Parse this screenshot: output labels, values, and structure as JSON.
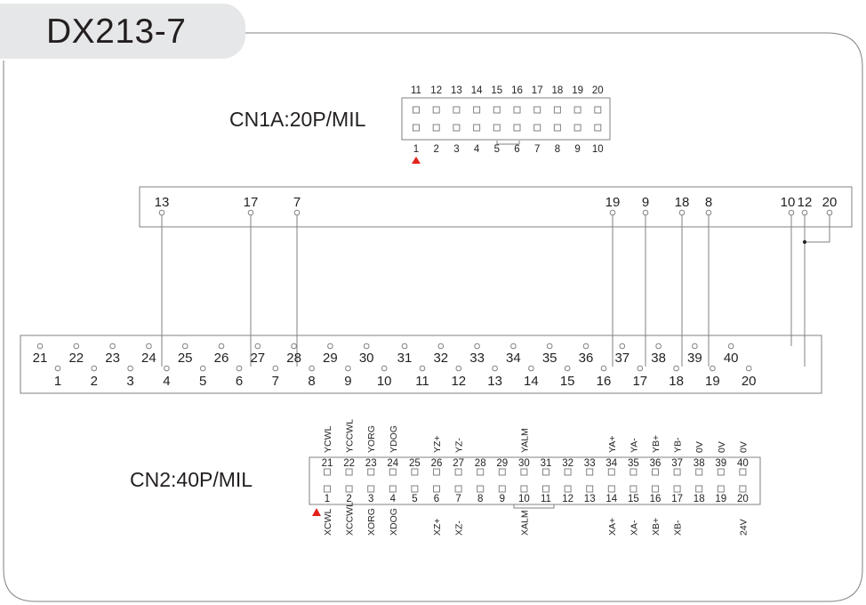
{
  "title": "DX213-7",
  "cn1a": {
    "label": "CN1A:20P/MIL",
    "top_pins": [
      "11",
      "12",
      "13",
      "14",
      "15",
      "16",
      "17",
      "18",
      "19",
      "20"
    ],
    "bottom_pins": [
      "1",
      "2",
      "3",
      "4",
      "5",
      "6",
      "7",
      "8",
      "9",
      "10"
    ]
  },
  "mid_strip": {
    "pins": [
      "13",
      "17",
      "7",
      "19",
      "9",
      "18",
      "8",
      "10",
      "12",
      "20"
    ]
  },
  "terminal": {
    "top_row": [
      "21",
      "22",
      "23",
      "24",
      "25",
      "26",
      "27",
      "28",
      "29",
      "30",
      "31",
      "32",
      "33",
      "34",
      "35",
      "36",
      "37",
      "38",
      "39",
      "40"
    ],
    "bottom_row": [
      "1",
      "2",
      "3",
      "4",
      "5",
      "6",
      "7",
      "8",
      "9",
      "10",
      "11",
      "12",
      "13",
      "14",
      "15",
      "16",
      "17",
      "18",
      "19",
      "20"
    ]
  },
  "cn2": {
    "label": "CN2:40P/MIL",
    "top_pins": [
      "21",
      "22",
      "23",
      "24",
      "25",
      "26",
      "27",
      "28",
      "29",
      "30",
      "31",
      "32",
      "33",
      "34",
      "35",
      "36",
      "37",
      "38",
      "39",
      "40"
    ],
    "bottom_pins": [
      "1",
      "2",
      "3",
      "4",
      "5",
      "6",
      "7",
      "8",
      "9",
      "10",
      "11",
      "12",
      "13",
      "14",
      "15",
      "16",
      "17",
      "18",
      "19",
      "20"
    ],
    "top_signals": [
      "YCWL",
      "YCCWL",
      "YORG",
      "YDOG",
      "",
      "YZ+",
      "YZ-",
      "",
      "",
      "YALM",
      "",
      "",
      "",
      "YA+",
      "YA-",
      "YB+",
      "YB-",
      "0V",
      "0V",
      "0V"
    ],
    "bottom_signals": [
      "XCWL",
      "XCCWL",
      "XORG",
      "XDOG",
      "",
      "XZ+",
      "XZ-",
      "",
      "",
      "XALM",
      "",
      "",
      "",
      "XA+",
      "XA-",
      "XB+",
      "XB-",
      "",
      "",
      "24V"
    ]
  }
}
